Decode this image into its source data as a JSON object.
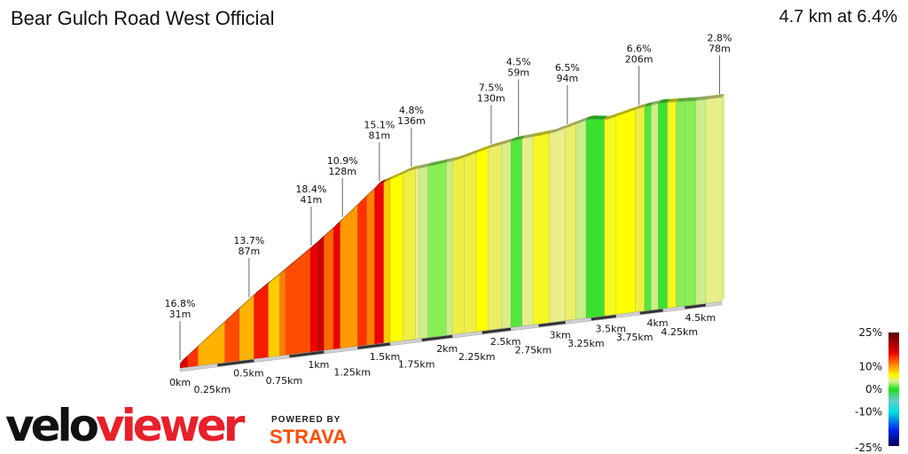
{
  "title": "Bear Gulch Road West Official",
  "summary": "4.7 km at 6.4%",
  "logo": {
    "velo": "velo",
    "viewer": "viewer",
    "powered_by": "POWERED BY",
    "strava": "STRAVA"
  },
  "chart_data": {
    "type": "area",
    "title": "Bear Gulch Road West Official",
    "xlabel": "",
    "ylabel": "",
    "x_unit": "km",
    "xlim": [
      0,
      4.7
    ],
    "x_ticks": [
      "0km",
      "0.25km",
      "0.5km",
      "0.75km",
      "1km",
      "1.25km",
      "1.5km",
      "1.75km",
      "2km",
      "2.25km",
      "2.5km",
      "2.75km",
      "3km",
      "3.25km",
      "3.5km",
      "3.75km",
      "4km",
      "4.25km",
      "4.5km"
    ],
    "profile": [
      [
        0,
        0
      ],
      [
        0.22,
        40
      ],
      [
        0.49,
        87
      ],
      [
        0.92,
        151
      ],
      [
        1.07,
        175
      ],
      [
        1.41,
        232
      ],
      [
        1.66,
        248
      ],
      [
        2.04,
        255
      ],
      [
        2.31,
        267
      ],
      [
        2.55,
        274
      ],
      [
        2.88,
        278
      ],
      [
        3.23,
        292
      ],
      [
        3.41,
        288
      ],
      [
        3.74,
        299
      ],
      [
        3.98,
        303
      ],
      [
        4.38,
        300
      ],
      [
        4.7,
        300
      ]
    ],
    "segments": [
      [
        0,
        0.05,
        17
      ],
      [
        0.05,
        0.12,
        14
      ],
      [
        0.12,
        0.3,
        9
      ],
      [
        0.3,
        0.4,
        13
      ],
      [
        0.4,
        0.5,
        9
      ],
      [
        0.5,
        0.6,
        15
      ],
      [
        0.6,
        0.68,
        8
      ],
      [
        0.68,
        0.72,
        11
      ],
      [
        0.72,
        0.9,
        13
      ],
      [
        0.9,
        0.95,
        16
      ],
      [
        0.95,
        1.0,
        18
      ],
      [
        1.0,
        1.07,
        12
      ],
      [
        1.07,
        1.12,
        16
      ],
      [
        1.12,
        1.25,
        10
      ],
      [
        1.25,
        1.32,
        14
      ],
      [
        1.32,
        1.38,
        11
      ],
      [
        1.38,
        1.45,
        16
      ],
      [
        1.45,
        1.5,
        8
      ],
      [
        1.5,
        1.6,
        6
      ],
      [
        1.6,
        1.7,
        5
      ],
      [
        1.7,
        1.73,
        4
      ],
      [
        1.73,
        1.8,
        3
      ],
      [
        1.8,
        1.95,
        2
      ],
      [
        1.95,
        2.0,
        3
      ],
      [
        2.0,
        2.1,
        5
      ],
      [
        2.1,
        2.2,
        5
      ],
      [
        2.2,
        2.3,
        6
      ],
      [
        2.3,
        2.42,
        4.5
      ],
      [
        2.42,
        2.5,
        3.5
      ],
      [
        2.5,
        2.6,
        1
      ],
      [
        2.6,
        2.7,
        4
      ],
      [
        2.7,
        2.85,
        5.5
      ],
      [
        2.85,
        3.0,
        4
      ],
      [
        3.0,
        3.1,
        4.5
      ],
      [
        3.1,
        3.2,
        3
      ],
      [
        3.2,
        3.38,
        0.5
      ],
      [
        3.38,
        3.5,
        5.5
      ],
      [
        3.5,
        3.7,
        6
      ],
      [
        3.7,
        3.8,
        5
      ],
      [
        3.8,
        3.87,
        1
      ],
      [
        3.87,
        3.95,
        3
      ],
      [
        3.95,
        4.05,
        0.5
      ],
      [
        4.05,
        4.15,
        5.5
      ],
      [
        4.15,
        4.25,
        2
      ],
      [
        4.25,
        4.38,
        2
      ],
      [
        4.38,
        4.5,
        3
      ],
      [
        4.5,
        4.7,
        4
      ]
    ],
    "annotations": [
      {
        "km": 0.0,
        "grade": "16.8%",
        "length": "31m"
      },
      {
        "km": 0.46,
        "grade": "13.7%",
        "length": "87m"
      },
      {
        "km": 0.9,
        "grade": "18.4%",
        "length": "41m"
      },
      {
        "km": 1.13,
        "grade": "10.9%",
        "length": "128m"
      },
      {
        "km": 1.41,
        "grade": "15.1%",
        "length": "81m"
      },
      {
        "km": 1.66,
        "grade": "4.8%",
        "length": "136m"
      },
      {
        "km": 2.32,
        "grade": "7.5%",
        "length": "130m"
      },
      {
        "km": 2.56,
        "grade": "4.5%",
        "length": "59m"
      },
      {
        "km": 3.01,
        "grade": "6.5%",
        "length": "94m"
      },
      {
        "km": 3.73,
        "grade": "6.6%",
        "length": "206m"
      },
      {
        "km": 4.66,
        "grade": "2.8%",
        "length": "78m"
      }
    ],
    "legend": {
      "type": "colorbar",
      "placement": "bottom-right",
      "labels": [
        "25%",
        "10%",
        "0%",
        "-10%",
        "-25%"
      ],
      "values": [
        25,
        10,
        0,
        -10,
        -25
      ],
      "colors": {
        "25": "#550000",
        "20": "#aa0000",
        "16": "#ee0000",
        "14": "#ff3300",
        "12": "#ff6600",
        "10": "#ff9900",
        "8": "#ffcc00",
        "6": "#ffff00",
        "5": "#eeee44",
        "4": "#e8ee88",
        "3": "#ccee88",
        "2": "#88ee55",
        "0": "#22dd22",
        "-5": "#66cccc",
        "-10": "#00e0e0",
        "-18": "#0022ee",
        "-25": "#000055"
      }
    }
  }
}
